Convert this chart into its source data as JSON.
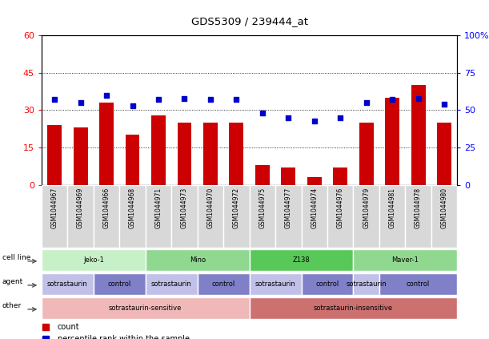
{
  "title": "GDS5309 / 239444_at",
  "samples": [
    "GSM1044967",
    "GSM1044969",
    "GSM1044966",
    "GSM1044968",
    "GSM1044971",
    "GSM1044973",
    "GSM1044970",
    "GSM1044972",
    "GSM1044975",
    "GSM1044977",
    "GSM1044974",
    "GSM1044976",
    "GSM1044979",
    "GSM1044981",
    "GSM1044978",
    "GSM1044980"
  ],
  "bar_values": [
    24,
    23,
    33,
    20,
    28,
    25,
    25,
    25,
    8,
    7,
    3,
    7,
    25,
    35,
    40,
    25
  ],
  "dot_values_pct": [
    57,
    55,
    60,
    53,
    57,
    58,
    57,
    57,
    48,
    45,
    43,
    45,
    55,
    57,
    58,
    54
  ],
  "bar_color": "#cc0000",
  "dot_color": "#0000cc",
  "ylim_left": [
    0,
    60
  ],
  "ylim_right": [
    0,
    100
  ],
  "yticks_left": [
    0,
    15,
    30,
    45,
    60
  ],
  "yticks_right": [
    0,
    25,
    50,
    75,
    100
  ],
  "ytick_labels_right": [
    "0",
    "25",
    "50",
    "75",
    "100%"
  ],
  "grid_values": [
    15,
    30,
    45
  ],
  "cell_line_row": {
    "label": "cell line",
    "groups": [
      {
        "name": "Jeko-1",
        "start": 0,
        "end": 3,
        "color": "#c8f0c8"
      },
      {
        "name": "Mino",
        "start": 4,
        "end": 7,
        "color": "#90d890"
      },
      {
        "name": "Z138",
        "start": 8,
        "end": 11,
        "color": "#58c858"
      },
      {
        "name": "Maver-1",
        "start": 12,
        "end": 15,
        "color": "#90d890"
      }
    ]
  },
  "agent_row": {
    "label": "agent",
    "groups": [
      {
        "name": "sotrastaurin",
        "start": 0,
        "end": 1,
        "color": "#c0c0e8"
      },
      {
        "name": "control",
        "start": 2,
        "end": 3,
        "color": "#8080c8"
      },
      {
        "name": "sotrastaurin",
        "start": 4,
        "end": 5,
        "color": "#c0c0e8"
      },
      {
        "name": "control",
        "start": 6,
        "end": 7,
        "color": "#8080c8"
      },
      {
        "name": "sotrastaurin",
        "start": 8,
        "end": 9,
        "color": "#c0c0e8"
      },
      {
        "name": "control",
        "start": 10,
        "end": 11,
        "color": "#8080c8"
      },
      {
        "name": "sotrastaurin",
        "start": 12,
        "end": 12,
        "color": "#c0c0e8"
      },
      {
        "name": "control",
        "start": 13,
        "end": 15,
        "color": "#8080c8"
      }
    ]
  },
  "other_row": {
    "label": "other",
    "groups": [
      {
        "name": "sotrastaurin-sensitive",
        "start": 0,
        "end": 7,
        "color": "#f0b8b8"
      },
      {
        "name": "sotrastaurin-insensitive",
        "start": 8,
        "end": 15,
        "color": "#cc7070"
      }
    ]
  },
  "legend_items": [
    {
      "label": "count",
      "color": "#cc0000"
    },
    {
      "label": "percentile rank within the sample",
      "color": "#0000cc"
    }
  ]
}
